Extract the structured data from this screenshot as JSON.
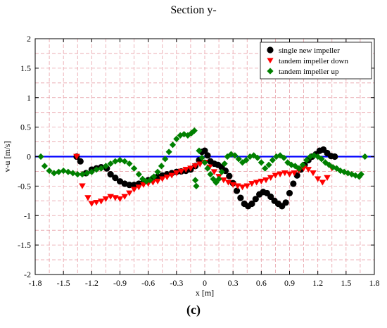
{
  "chart_data": {
    "type": "scatter",
    "title": "Section y-",
    "caption": "(c)",
    "xlabel": "x [m]",
    "ylabel": "v-u [m/s]",
    "xlim": [
      -1.8,
      1.8
    ],
    "ylim": [
      -2,
      2
    ],
    "xticks": [
      -1.8,
      -1.5,
      -1.2,
      -0.9,
      -0.6,
      -0.3,
      0,
      0.3,
      0.6,
      0.9,
      1.2,
      1.5,
      1.8
    ],
    "xtick_labels": [
      "-1.8",
      "-1.5",
      "-1.2",
      "-0.9",
      "-0.6",
      "-0.3",
      "0",
      "0.3",
      "0.6",
      "0.9",
      "1.2",
      "1.5",
      "1.8"
    ],
    "yticks": [
      -2,
      -1.5,
      -1,
      -0.5,
      0,
      0.5,
      1,
      1.5,
      2
    ],
    "ytick_labels": [
      "-2",
      "-1.5",
      "-1",
      "-0.5",
      "0",
      "0.5",
      "1",
      "1.5",
      "2"
    ],
    "grid": true,
    "legend_position": "top-right",
    "reference_line": {
      "y": 0,
      "color": "#0000ff"
    },
    "series": [
      {
        "name": "single new impeller",
        "marker": "circle",
        "color": "#000000",
        "points": [
          [
            -1.36,
            0.0
          ],
          [
            -1.32,
            -0.08
          ],
          [
            -1.26,
            -0.28
          ],
          [
            -1.2,
            -0.22
          ],
          [
            -1.15,
            -0.2
          ],
          [
            -1.1,
            -0.18
          ],
          [
            -1.04,
            -0.2
          ],
          [
            -1.0,
            -0.3
          ],
          [
            -0.95,
            -0.36
          ],
          [
            -0.9,
            -0.42
          ],
          [
            -0.85,
            -0.46
          ],
          [
            -0.8,
            -0.48
          ],
          [
            -0.75,
            -0.48
          ],
          [
            -0.7,
            -0.46
          ],
          [
            -0.65,
            -0.43
          ],
          [
            -0.6,
            -0.4
          ],
          [
            -0.55,
            -0.37
          ],
          [
            -0.5,
            -0.34
          ],
          [
            -0.45,
            -0.32
          ],
          [
            -0.4,
            -0.3
          ],
          [
            -0.35,
            -0.28
          ],
          [
            -0.3,
            -0.26
          ],
          [
            -0.25,
            -0.25
          ],
          [
            -0.2,
            -0.24
          ],
          [
            -0.15,
            -0.22
          ],
          [
            -0.1,
            -0.16
          ],
          [
            -0.06,
            -0.06
          ],
          [
            -0.03,
            0.08
          ],
          [
            0.0,
            0.1
          ],
          [
            0.03,
            0.02
          ],
          [
            0.06,
            -0.08
          ],
          [
            0.1,
            -0.12
          ],
          [
            0.14,
            -0.14
          ],
          [
            0.18,
            -0.18
          ],
          [
            0.22,
            -0.24
          ],
          [
            0.26,
            -0.33
          ],
          [
            0.3,
            -0.45
          ],
          [
            0.34,
            -0.58
          ],
          [
            0.38,
            -0.7
          ],
          [
            0.42,
            -0.8
          ],
          [
            0.46,
            -0.84
          ],
          [
            0.5,
            -0.8
          ],
          [
            0.54,
            -0.72
          ],
          [
            0.58,
            -0.64
          ],
          [
            0.62,
            -0.6
          ],
          [
            0.66,
            -0.62
          ],
          [
            0.7,
            -0.68
          ],
          [
            0.74,
            -0.75
          ],
          [
            0.78,
            -0.8
          ],
          [
            0.82,
            -0.84
          ],
          [
            0.86,
            -0.78
          ],
          [
            0.9,
            -0.62
          ],
          [
            0.94,
            -0.46
          ],
          [
            0.98,
            -0.32
          ],
          [
            1.02,
            -0.22
          ],
          [
            1.06,
            -0.14
          ],
          [
            1.1,
            -0.06
          ],
          [
            1.14,
            0.0
          ],
          [
            1.18,
            0.04
          ],
          [
            1.22,
            0.1
          ],
          [
            1.26,
            0.12
          ],
          [
            1.3,
            0.06
          ],
          [
            1.34,
            0.01
          ],
          [
            1.38,
            0.0
          ]
        ]
      },
      {
        "name": "tandem impeller down",
        "marker": "triangle-down",
        "color": "#ff0000",
        "points": [
          [
            -1.36,
            0.0
          ],
          [
            -1.3,
            -0.5
          ],
          [
            -1.24,
            -0.7
          ],
          [
            -1.2,
            -0.8
          ],
          [
            -1.15,
            -0.78
          ],
          [
            -1.1,
            -0.76
          ],
          [
            -1.05,
            -0.72
          ],
          [
            -1.0,
            -0.68
          ],
          [
            -0.95,
            -0.7
          ],
          [
            -0.9,
            -0.72
          ],
          [
            -0.85,
            -0.68
          ],
          [
            -0.8,
            -0.62
          ],
          [
            -0.75,
            -0.56
          ],
          [
            -0.7,
            -0.52
          ],
          [
            -0.65,
            -0.48
          ],
          [
            -0.6,
            -0.46
          ],
          [
            -0.55,
            -0.44
          ],
          [
            -0.5,
            -0.42
          ],
          [
            -0.45,
            -0.38
          ],
          [
            -0.4,
            -0.35
          ],
          [
            -0.35,
            -0.32
          ],
          [
            -0.3,
            -0.28
          ],
          [
            -0.25,
            -0.25
          ],
          [
            -0.2,
            -0.22
          ],
          [
            -0.15,
            -0.2
          ],
          [
            -0.1,
            -0.16
          ],
          [
            -0.05,
            -0.13
          ],
          [
            0.0,
            -0.1
          ],
          [
            0.05,
            -0.18
          ],
          [
            0.1,
            -0.26
          ],
          [
            0.15,
            -0.34
          ],
          [
            0.2,
            -0.4
          ],
          [
            0.25,
            -0.44
          ],
          [
            0.3,
            -0.48
          ],
          [
            0.35,
            -0.5
          ],
          [
            0.4,
            -0.52
          ],
          [
            0.45,
            -0.5
          ],
          [
            0.5,
            -0.46
          ],
          [
            0.55,
            -0.44
          ],
          [
            0.6,
            -0.42
          ],
          [
            0.65,
            -0.4
          ],
          [
            0.7,
            -0.36
          ],
          [
            0.75,
            -0.32
          ],
          [
            0.8,
            -0.3
          ],
          [
            0.85,
            -0.28
          ],
          [
            0.9,
            -0.3
          ],
          [
            0.95,
            -0.28
          ],
          [
            1.0,
            -0.24
          ],
          [
            1.05,
            -0.2
          ],
          [
            1.1,
            -0.22
          ],
          [
            1.15,
            -0.28
          ],
          [
            1.2,
            -0.38
          ],
          [
            1.25,
            -0.44
          ],
          [
            1.3,
            -0.36
          ],
          [
            1.35,
            -0.2
          ]
        ]
      },
      {
        "name": "tandem impeller up",
        "marker": "diamond",
        "color": "#008000",
        "points": [
          [
            -1.74,
            0.0
          ],
          [
            -1.7,
            -0.16
          ],
          [
            -1.65,
            -0.24
          ],
          [
            -1.6,
            -0.28
          ],
          [
            -1.55,
            -0.26
          ],
          [
            -1.5,
            -0.24
          ],
          [
            -1.45,
            -0.26
          ],
          [
            -1.4,
            -0.28
          ],
          [
            -1.35,
            -0.3
          ],
          [
            -1.3,
            -0.3
          ],
          [
            -1.25,
            -0.28
          ],
          [
            -1.2,
            -0.26
          ],
          [
            -1.15,
            -0.22
          ],
          [
            -1.1,
            -0.2
          ],
          [
            -1.05,
            -0.16
          ],
          [
            -1.0,
            -0.12
          ],
          [
            -0.95,
            -0.08
          ],
          [
            -0.9,
            -0.06
          ],
          [
            -0.85,
            -0.08
          ],
          [
            -0.8,
            -0.12
          ],
          [
            -0.75,
            -0.2
          ],
          [
            -0.7,
            -0.3
          ],
          [
            -0.66,
            -0.38
          ],
          [
            -0.62,
            -0.42
          ],
          [
            -0.58,
            -0.4
          ],
          [
            -0.54,
            -0.34
          ],
          [
            -0.5,
            -0.26
          ],
          [
            -0.46,
            -0.16
          ],
          [
            -0.42,
            -0.04
          ],
          [
            -0.38,
            0.08
          ],
          [
            -0.34,
            0.2
          ],
          [
            -0.3,
            0.3
          ],
          [
            -0.26,
            0.36
          ],
          [
            -0.22,
            0.38
          ],
          [
            -0.18,
            0.36
          ],
          [
            -0.14,
            0.4
          ],
          [
            -0.11,
            0.44
          ],
          [
            -0.1,
            -0.4
          ],
          [
            -0.09,
            -0.5
          ],
          [
            -0.06,
            0.1
          ],
          [
            -0.03,
            -0.02
          ],
          [
            0.0,
            -0.1
          ],
          [
            0.03,
            -0.2
          ],
          [
            0.06,
            -0.3
          ],
          [
            0.09,
            -0.38
          ],
          [
            0.12,
            -0.44
          ],
          [
            0.15,
            -0.38
          ],
          [
            0.18,
            -0.26
          ],
          [
            0.21,
            -0.12
          ],
          [
            0.24,
            0.0
          ],
          [
            0.28,
            0.04
          ],
          [
            0.32,
            0.02
          ],
          [
            0.36,
            -0.04
          ],
          [
            0.4,
            -0.1
          ],
          [
            0.44,
            -0.06
          ],
          [
            0.48,
            0.0
          ],
          [
            0.52,
            0.02
          ],
          [
            0.56,
            -0.02
          ],
          [
            0.6,
            -0.1
          ],
          [
            0.64,
            -0.2
          ],
          [
            0.68,
            -0.14
          ],
          [
            0.72,
            -0.06
          ],
          [
            0.76,
            0.0
          ],
          [
            0.8,
            0.02
          ],
          [
            0.84,
            -0.02
          ],
          [
            0.88,
            -0.1
          ],
          [
            0.92,
            -0.14
          ],
          [
            0.96,
            -0.16
          ],
          [
            1.0,
            -0.2
          ],
          [
            1.04,
            -0.14
          ],
          [
            1.08,
            -0.06
          ],
          [
            1.12,
            0.0
          ],
          [
            1.16,
            0.02
          ],
          [
            1.2,
            0.0
          ],
          [
            1.24,
            -0.04
          ],
          [
            1.28,
            -0.1
          ],
          [
            1.32,
            -0.14
          ],
          [
            1.36,
            -0.18
          ],
          [
            1.4,
            -0.2
          ],
          [
            1.44,
            -0.24
          ],
          [
            1.48,
            -0.26
          ],
          [
            1.52,
            -0.28
          ],
          [
            1.56,
            -0.3
          ],
          [
            1.6,
            -0.32
          ],
          [
            1.64,
            -0.34
          ],
          [
            1.66,
            -0.3
          ],
          [
            1.7,
            0.0
          ]
        ]
      }
    ]
  }
}
